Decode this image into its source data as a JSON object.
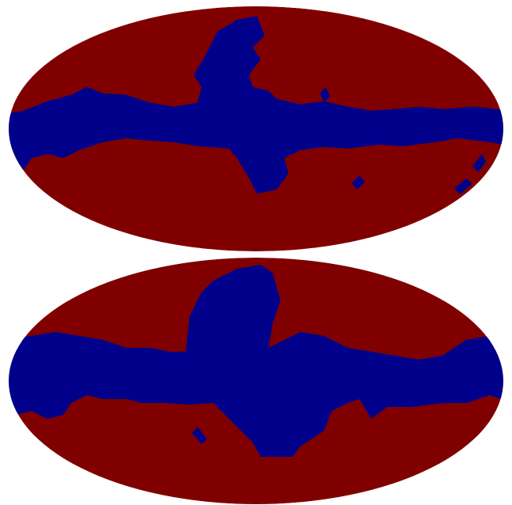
{
  "maps": [
    {
      "background": "#800000",
      "mask": "#00008b"
    },
    {
      "background": "#800000",
      "mask": "#00008b"
    }
  ]
}
